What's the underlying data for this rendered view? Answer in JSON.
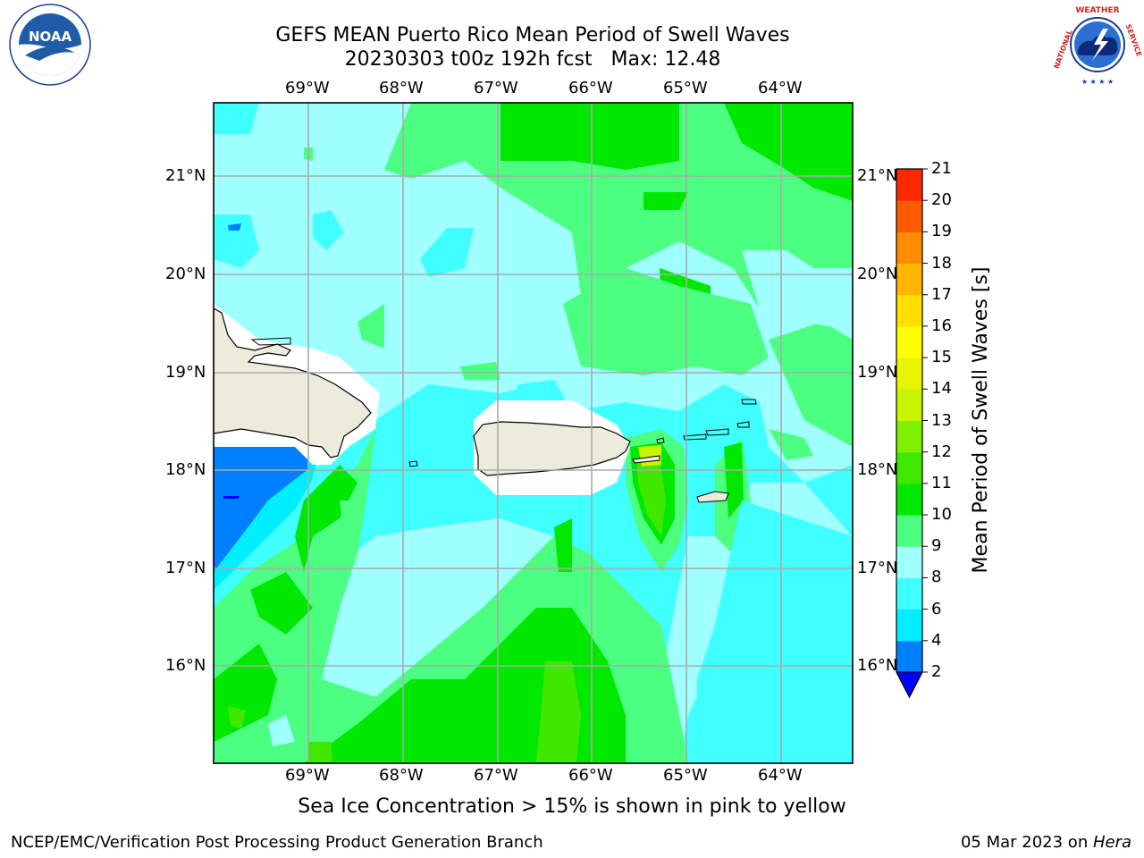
{
  "header": {
    "title_line1": "GEFS MEAN Puerto Rico Mean Period of Swell Waves",
    "title_line2": "20230303 t00z 192h fcst   Max: 12.48"
  },
  "map": {
    "lon_labels": [
      "69°W",
      "68°W",
      "67°W",
      "66°W",
      "65°W",
      "64°W"
    ],
    "lat_labels": [
      "21°N",
      "20°N",
      "19°N",
      "18°N",
      "17°N",
      "16°N"
    ],
    "land_color": "#EDECDC",
    "ocean_palette": {
      "2-4": "#0080FF",
      "4-6": "#00EEFF",
      "6-8": "#40FFFF",
      "8-9": "#A0FFFF",
      "9-10": "#4CFF80",
      "10-11": "#00E800",
      "11-12": "#40E800",
      "12-13": "#C8F400"
    }
  },
  "colorbar": {
    "label": "Mean Period of Swell Waves [s]",
    "ticks": [
      "2",
      "4",
      "6",
      "8",
      "9",
      "10",
      "11",
      "12",
      "13",
      "14",
      "15",
      "16",
      "17",
      "18",
      "19",
      "20",
      "21"
    ],
    "colors": [
      "#0080FF",
      "#00EEFF",
      "#40FFFF",
      "#A0FFFF",
      "#4CFF80",
      "#00E800",
      "#40E800",
      "#80F000",
      "#C8F400",
      "#E8F400",
      "#FFFF00",
      "#FFE000",
      "#FFB400",
      "#FF8C00",
      "#FF5A00",
      "#FF2800",
      "#FF0000"
    ],
    "underflow_color": "#0000FF"
  },
  "caption": "Sea Ice Concentration > 15% is shown in pink to yellow",
  "footer": {
    "left": "NCEP/EMC/Verification Post Processing Product Generation Branch",
    "right_date": "05 Mar 2023 on ",
    "right_machine": "Hera"
  },
  "logos": {
    "noaa_text": "NOAA",
    "nws_text": "NATIONAL WEATHER SERVICE"
  }
}
